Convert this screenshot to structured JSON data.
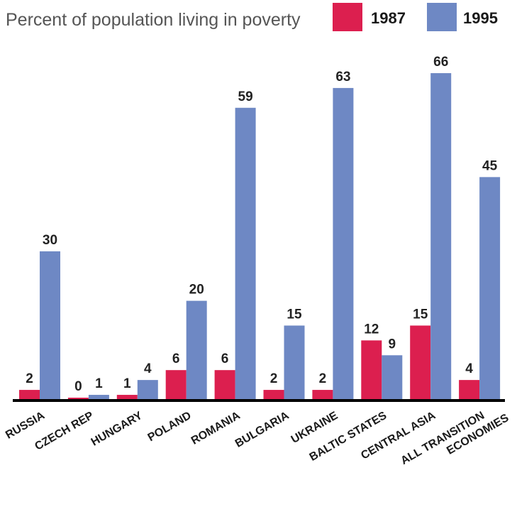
{
  "chart_data": {
    "type": "bar",
    "title": "Percent of population living in poverty",
    "categories": [
      [
        "RUSSIA"
      ],
      [
        "CZECH REP"
      ],
      [
        "HUNGARY"
      ],
      [
        "POLAND"
      ],
      [
        "ROMANIA"
      ],
      [
        "BULGARIA"
      ],
      [
        "UKRAINE"
      ],
      [
        "BALTIC STATES"
      ],
      [
        "CENTRAL ASIA"
      ],
      [
        "ALL TRANSITION",
        "ECONOMIES"
      ]
    ],
    "series": [
      {
        "name": "1987",
        "color": "#dc1f4f",
        "values": [
          2,
          0,
          1,
          6,
          6,
          2,
          2,
          12,
          15,
          4
        ]
      },
      {
        "name": "1995",
        "color": "#6e88c4",
        "values": [
          30,
          1,
          4,
          20,
          59,
          15,
          63,
          9,
          66,
          45
        ]
      }
    ],
    "ylim": [
      0,
      70
    ],
    "grid": false,
    "legend_position": "top-right"
  }
}
